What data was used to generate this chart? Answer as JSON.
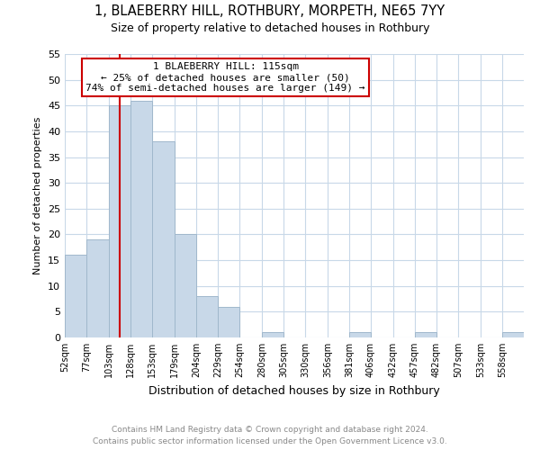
{
  "title_line1": "1, BLAEBERRY HILL, ROTHBURY, MORPETH, NE65 7YY",
  "title_line2": "Size of property relative to detached houses in Rothbury",
  "xlabel": "Distribution of detached houses by size in Rothbury",
  "ylabel": "Number of detached properties",
  "categories": [
    "52sqm",
    "77sqm",
    "103sqm",
    "128sqm",
    "153sqm",
    "179sqm",
    "204sqm",
    "229sqm",
    "254sqm",
    "280sqm",
    "305sqm",
    "330sqm",
    "356sqm",
    "381sqm",
    "406sqm",
    "432sqm",
    "457sqm",
    "482sqm",
    "507sqm",
    "533sqm",
    "558sqm"
  ],
  "values": [
    16,
    19,
    45,
    46,
    38,
    20,
    8,
    6,
    0,
    1,
    0,
    0,
    0,
    1,
    0,
    0,
    1,
    0,
    0,
    0,
    1
  ],
  "bar_color": "#c8d8e8",
  "bar_edge_color": "#a0b8cc",
  "bin_edges": [
    52,
    77,
    103,
    128,
    153,
    179,
    204,
    229,
    254,
    280,
    305,
    330,
    356,
    381,
    406,
    432,
    457,
    482,
    507,
    533,
    558,
    583
  ],
  "red_line_x": 115,
  "annotation_text": "1 BLAEBERRY HILL: 115sqm\n← 25% of detached houses are smaller (50)\n74% of semi-detached houses are larger (149) →",
  "annotation_box_color": "#ffffff",
  "annotation_box_edge": "#cc0000",
  "ylim": [
    0,
    55
  ],
  "yticks": [
    0,
    5,
    10,
    15,
    20,
    25,
    30,
    35,
    40,
    45,
    50,
    55
  ],
  "footer_line1": "Contains HM Land Registry data © Crown copyright and database right 2024.",
  "footer_line2": "Contains public sector information licensed under the Open Government Licence v3.0.",
  "bg_color": "#ffffff",
  "grid_color": "#c8d8e8"
}
